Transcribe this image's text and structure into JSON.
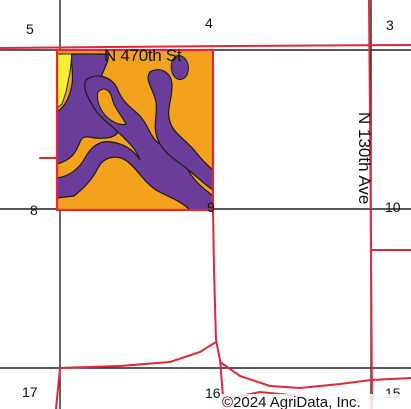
{
  "map": {
    "roads": {
      "east_west": "N 470th St",
      "north_south": "N 130th Ave"
    },
    "section_numbers": {
      "top_left": "5",
      "top_center": "4",
      "top_right": "3",
      "middle_left": "8",
      "middle_center": "9",
      "middle_right": "10",
      "bottom_left": "17",
      "bottom_center": "16",
      "bottom_right": "15"
    },
    "copyright": "©2024 AgriData, Inc.",
    "colors": {
      "soil_orange": "#f2a21c",
      "soil_purple": "#6a3d9a",
      "soil_yellow": "#f5f032",
      "road_red": "#e0283a",
      "section_line": "#222222"
    }
  }
}
